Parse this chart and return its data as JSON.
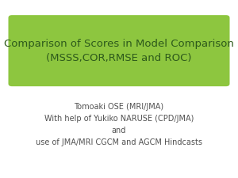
{
  "title_line1": "Comparison of Scores in Model Comparison",
  "title_line2": "(MSSS,COR,RMSE and ROC)",
  "title_bg_color": "#8dc63f",
  "title_text_color": "#2d5a1b",
  "body_line1": "Tomoaki OSE (MRI/JMA)",
  "body_line2": "With help of Yukiko NARUSE (CPD/JMA)",
  "body_line3": "and",
  "body_line4": "use of JMA/MRI CGCM and AGCM Hindcasts",
  "body_text_color": "#505050",
  "background_color": "#ffffff",
  "title_font_size": 9.5,
  "body_font_size": 7.0,
  "fig_width": 3.0,
  "fig_height": 2.25,
  "dpi": 100
}
